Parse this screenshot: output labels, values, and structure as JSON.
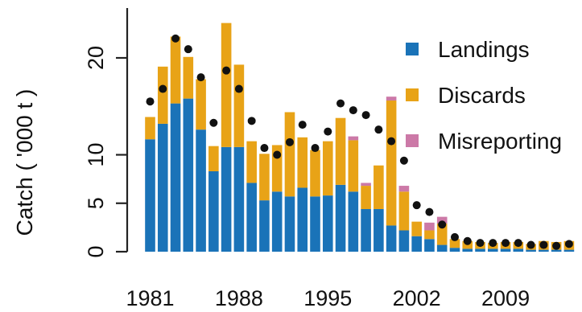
{
  "chart_data": {
    "type": "bar",
    "stacked": true,
    "ylabel": "Catch ( '000 t )",
    "xlabel": "",
    "ylim": [
      0,
      25
    ],
    "yticks": [
      0,
      5,
      10,
      20
    ],
    "xtick_labels": [
      "1981",
      "1988",
      "1995",
      "2002",
      "2009"
    ],
    "xtick_years": [
      1981,
      1988,
      1995,
      2002,
      2009
    ],
    "legend_position": "top-right",
    "categories": [
      1981,
      1982,
      1983,
      1984,
      1985,
      1986,
      1987,
      1988,
      1989,
      1990,
      1991,
      1992,
      1993,
      1994,
      1995,
      1996,
      1997,
      1998,
      1999,
      2000,
      2001,
      2002,
      2003,
      2004,
      2005,
      2006,
      2007,
      2008,
      2009,
      2010,
      2011,
      2012,
      2013,
      2014
    ],
    "series": [
      {
        "name": "Landings",
        "color": "#1a73b8",
        "values": [
          11.6,
          13.2,
          15.3,
          15.8,
          12.6,
          8.3,
          10.8,
          10.8,
          7.1,
          5.3,
          6.2,
          5.7,
          6.6,
          5.7,
          5.8,
          6.9,
          6.2,
          4.4,
          4.4,
          2.7,
          2.2,
          1.6,
          1.3,
          0.7,
          0.4,
          0.3,
          0.3,
          0.3,
          0.3,
          0.3,
          0.2,
          0.2,
          0.2,
          0.2
        ]
      },
      {
        "name": "Discards",
        "color": "#e8a317",
        "values": [
          2.3,
          5.9,
          6.9,
          4.3,
          5.2,
          2.6,
          12.8,
          8.5,
          4.3,
          4.8,
          4.8,
          8.7,
          5.2,
          4.8,
          5.6,
          6.9,
          5.3,
          2.4,
          4.5,
          12.9,
          4.0,
          1.5,
          0.9,
          2.2,
          0.9,
          0.8,
          0.7,
          0.6,
          0.7,
          0.7,
          0.6,
          0.9,
          0.8,
          0.9
        ]
      },
      {
        "name": "Misreporting",
        "color": "#cc79a7",
        "values": [
          0,
          0,
          0,
          0,
          0,
          0,
          0,
          0,
          0,
          0,
          0,
          0,
          0,
          0,
          0,
          0,
          0.4,
          0.3,
          0,
          0.4,
          0.6,
          0,
          0.8,
          0.7,
          0,
          0,
          0,
          0,
          0,
          0,
          0,
          0,
          0,
          0
        ]
      }
    ],
    "points": {
      "color": "#111111",
      "values": [
        15.5,
        16.8,
        22.0,
        20.9,
        18.0,
        13.3,
        18.7,
        16.8,
        13.5,
        10.7,
        10.0,
        11.3,
        13.1,
        10.7,
        12.4,
        15.3,
        14.6,
        14.1,
        12.6,
        11.4,
        9.4,
        4.8,
        4.1,
        2.8,
        1.5,
        1.1,
        0.9,
        0.9,
        0.9,
        0.9,
        0.7,
        0.7,
        0.6,
        0.8
      ]
    }
  }
}
